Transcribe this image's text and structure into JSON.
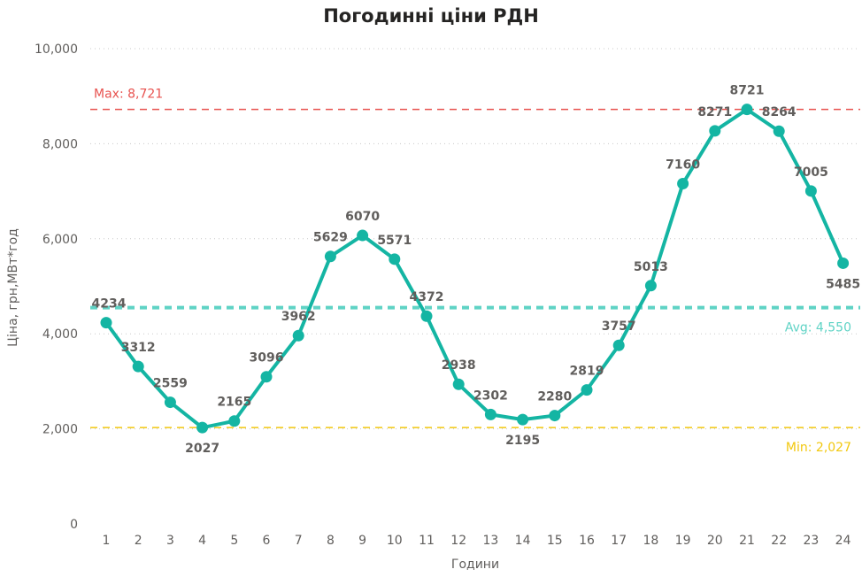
{
  "chart_data": {
    "type": "line",
    "title": "Погодинні ціни РДН",
    "xlabel": "Години",
    "ylabel": "Ціна, грн,МВт*год",
    "categories": [
      "1",
      "2",
      "3",
      "4",
      "5",
      "6",
      "7",
      "8",
      "9",
      "10",
      "11",
      "12",
      "13",
      "14",
      "15",
      "16",
      "17",
      "18",
      "19",
      "20",
      "21",
      "22",
      "23",
      "24"
    ],
    "series": [
      {
        "values": [
          4234,
          3312,
          2559,
          2027,
          2165,
          3096,
          3962,
          5629,
          6070,
          5571,
          4372,
          2938,
          2302,
          2195,
          2280,
          2819,
          3757,
          5013,
          7160,
          8271,
          8721,
          8264,
          7005,
          5485
        ]
      }
    ],
    "data_labels": [
      "4234",
      "3312",
      "2559",
      "2027",
      "2165",
      "3096",
      "3962",
      "5629",
      "6070",
      "5571",
      "4372",
      "2938",
      "2302",
      "2195",
      "2280",
      "2819",
      "3757",
      "5013",
      "7160",
      "8271",
      "8721",
      "8264",
      "7005",
      "5485"
    ],
    "ylim": [
      0,
      10000
    ],
    "yticks": [
      0,
      2000,
      4000,
      6000,
      8000,
      10000
    ],
    "ytick_labels": [
      "0",
      "2,000",
      "4,000",
      "6,000",
      "8,000",
      "10,000"
    ],
    "grid": "horizontal dotted",
    "reference_lines": [
      {
        "kind": "max",
        "label": "Max: 8,721",
        "value": 8721,
        "color": "#e8524f"
      },
      {
        "kind": "avg",
        "label": "Avg: 4,550",
        "value": 4550,
        "color": "#5fd3c5"
      },
      {
        "kind": "min",
        "label": "Min: 2,027",
        "value": 2027,
        "color": "#f2c80f"
      }
    ],
    "series_color": "#14b5a3",
    "label_position": "above"
  }
}
